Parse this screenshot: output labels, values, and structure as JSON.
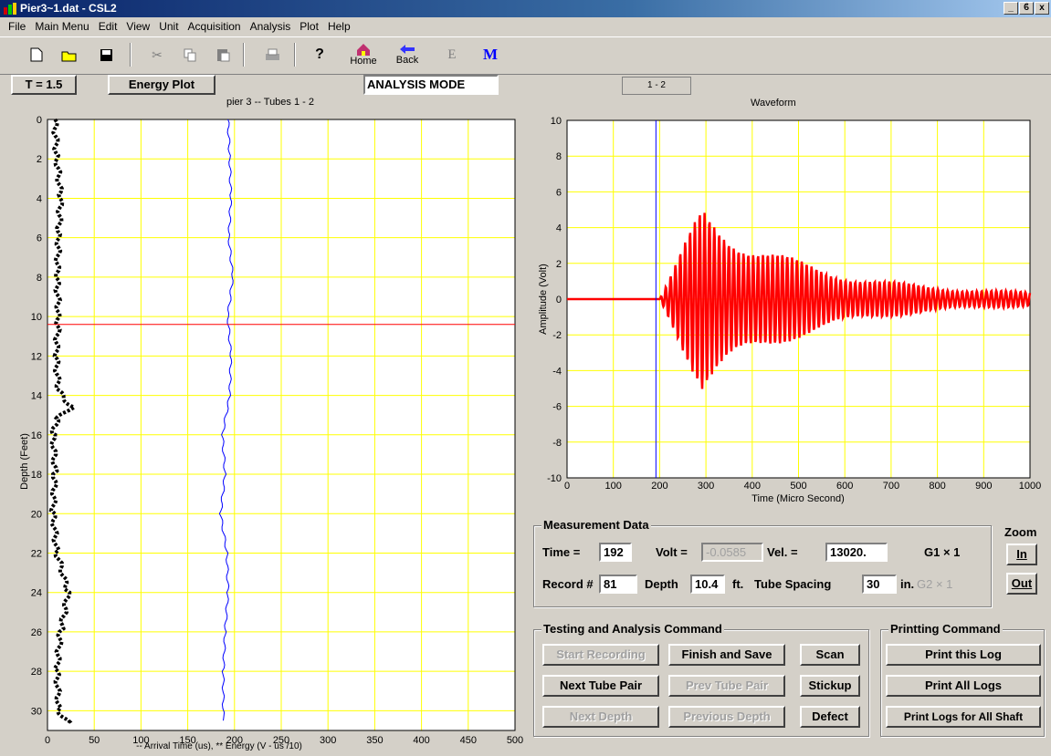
{
  "window": {
    "title": "Pier3~1.dat - CSL2",
    "min": "_",
    "max": "ϐ",
    "close": "x"
  },
  "menu": [
    "File",
    "Main Menu",
    "Edit",
    "View",
    "Unit",
    "Acquisition",
    "Analysis",
    "Plot",
    "Help"
  ],
  "toolbar": {
    "home_label": "Home",
    "back_label": "Back",
    "e_label": "E",
    "m_label": "M"
  },
  "controls": {
    "t_button": "T = 1.5",
    "energy_button": "Energy Plot",
    "mode": "ANALYSIS MODE",
    "pair_tab": "1 - 2"
  },
  "left_chart": {
    "title": "pier 3 -- Tubes 1 - 2",
    "ylabel": "Depth (Feet)",
    "xlabel": "-- Arrival Time (us), ** Energy (V - us /10)",
    "xticks": [
      "0",
      "50",
      "100",
      "150",
      "200",
      "250",
      "300",
      "350",
      "400",
      "450",
      "500"
    ],
    "yticks": [
      "0",
      "2",
      "4",
      "6",
      "8",
      "10",
      "12",
      "14",
      "16",
      "18",
      "20",
      "22",
      "24",
      "26",
      "28",
      "30"
    ],
    "marker_depth": 10.4
  },
  "chart_data": [
    {
      "type": "line",
      "title": "pier 3 -- Tubes 1 - 2",
      "xlabel": "-- Arrival Time (us), ** Energy (V - us /10)",
      "ylabel": "Depth (Feet)",
      "xlim": [
        0,
        500
      ],
      "ylim": [
        0,
        31
      ],
      "orientation": "depth-down",
      "series": [
        {
          "name": "Arrival Time",
          "color": "#0000ff",
          "depth": [
            0,
            2,
            4,
            6,
            8,
            10,
            12,
            14,
            16,
            18,
            20,
            22,
            24,
            26,
            28,
            30.5
          ],
          "values": [
            193,
            195,
            196,
            194,
            198,
            193,
            196,
            195,
            187,
            190,
            185,
            192,
            193,
            190,
            188,
            188
          ]
        },
        {
          "name": "Energy",
          "color": "#000000",
          "depth": [
            0,
            2,
            4,
            6,
            8,
            10,
            12,
            13.8,
            14.6,
            15.2,
            16,
            18,
            20,
            22,
            24,
            26,
            28,
            30,
            30.6
          ],
          "values": [
            8,
            10,
            14,
            12,
            10,
            12,
            9,
            12,
            26,
            10,
            6,
            8,
            6,
            10,
            22,
            14,
            10,
            12,
            22
          ]
        }
      ]
    },
    {
      "type": "line",
      "title": "Waveform",
      "xlabel": "Time (Micro Second)",
      "ylabel": "Amplitude (Volt)",
      "xlim": [
        0,
        1000
      ],
      "ylim": [
        -10,
        10
      ],
      "cursor_x": 192,
      "color": "#ff0000"
    }
  ],
  "right_chart": {
    "title": "Waveform",
    "xlabel": "Time (Micro Second)",
    "ylabel": "Amplitude (Volt)",
    "xticks": [
      "0",
      "100",
      "200",
      "300",
      "400",
      "500",
      "600",
      "700",
      "800",
      "900",
      "1000"
    ],
    "yticks": [
      "10",
      "8",
      "6",
      "4",
      "2",
      "0",
      "-2",
      "-4",
      "-6",
      "-8",
      "-10"
    ]
  },
  "measurement": {
    "title": "Measurement Data",
    "time_label": "Time =",
    "time": "192",
    "volt_label": "Volt =",
    "volt": "-0.0585",
    "vel_label": "Vel. =",
    "vel": "13020.",
    "g1": "G1 × 1",
    "record_label": "Record #",
    "record": "81",
    "depth_label": "Depth",
    "depth": "10.4",
    "ft": "ft.",
    "spacing_label": "Tube Spacing",
    "spacing": "30",
    "in": "in.",
    "g2": "G2 × 1"
  },
  "zoom": {
    "title": "Zoom",
    "in": "In",
    "out": "Out"
  },
  "testing": {
    "title": "Testing and Analysis Command",
    "start": "Start Recording",
    "finish": "Finish and Save",
    "scan": "Scan",
    "next_pair": "Next Tube Pair",
    "prev_pair": "Prev Tube Pair",
    "stickup": "Stickup",
    "next_depth": "Next Depth",
    "prev_depth": "Previous Depth",
    "defect": "Defect"
  },
  "printing": {
    "title": "Printting Command",
    "this_log": "Print this Log",
    "all_logs": "Print All Logs",
    "all_shaft": "Print Logs for All Shaft"
  }
}
